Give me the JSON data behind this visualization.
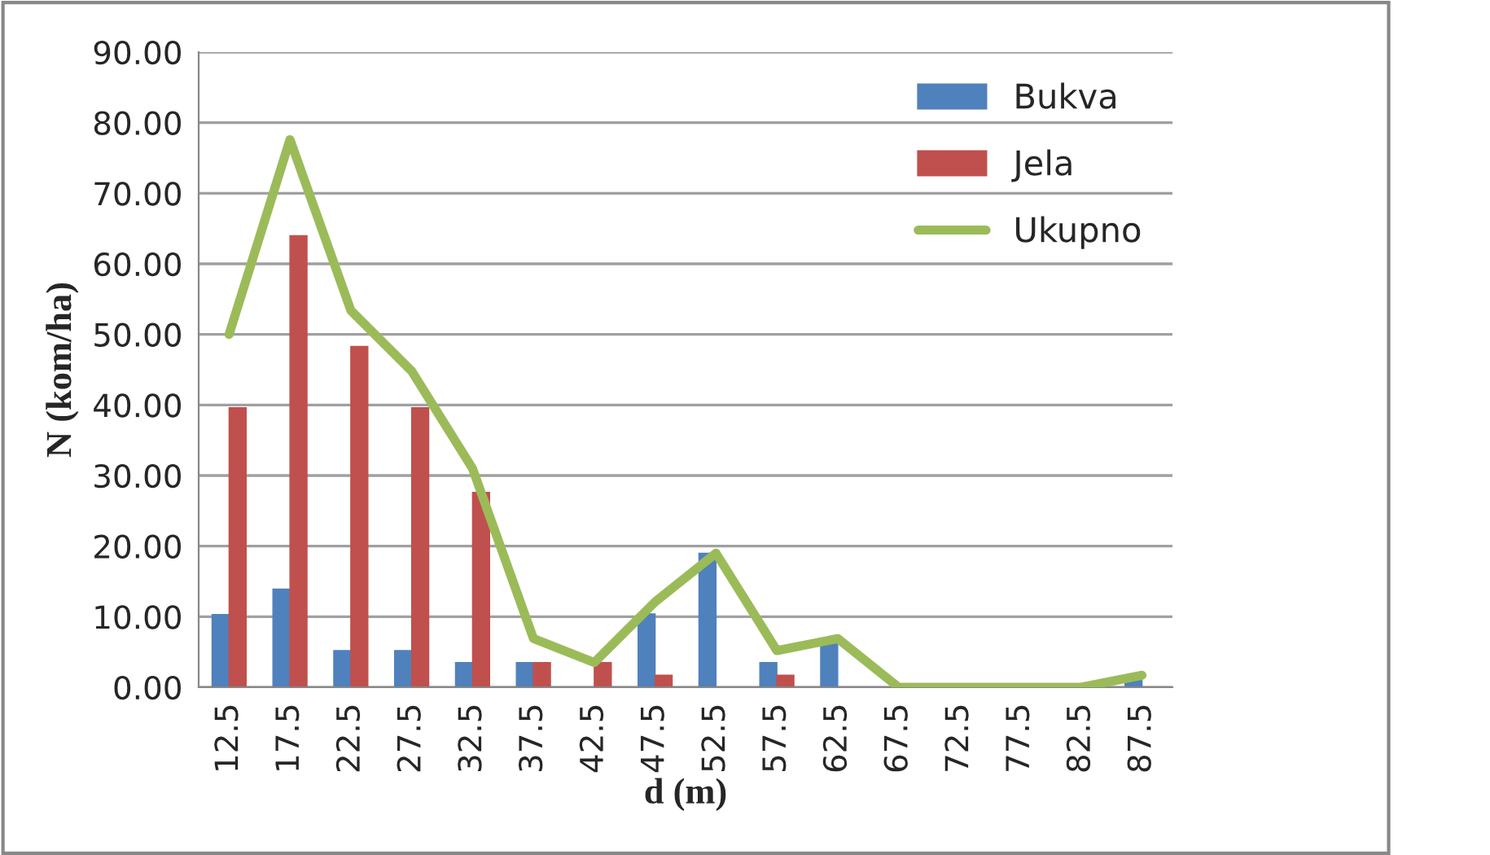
{
  "chart_data": {
    "type": "bar",
    "xlabel": "d (m)",
    "ylabel": "N (kom/ha)",
    "categories": [
      "12.5",
      "17.5",
      "22.5",
      "27.5",
      "32.5",
      "37.5",
      "42.5",
      "47.5",
      "52.5",
      "57.5",
      "62.5",
      "67.5",
      "72.5",
      "77.5",
      "82.5",
      "87.5"
    ],
    "series": [
      {
        "name": "Bukva",
        "color": "#4f81bd",
        "values": [
          10.3,
          13.9,
          5.2,
          5.2,
          3.5,
          3.5,
          0,
          10.4,
          19.0,
          3.5,
          6.9,
          0,
          0,
          0,
          0,
          1.0
        ]
      },
      {
        "name": "Jela",
        "color": "#c0504d",
        "values": [
          39.6,
          64.0,
          48.3,
          39.6,
          27.6,
          3.5,
          3.5,
          1.7,
          0,
          1.7,
          0,
          0,
          0,
          0,
          0,
          0
        ]
      },
      {
        "name": "Ukupno",
        "type": "line",
        "color": "#9bbb59",
        "values": [
          50.0,
          77.6,
          53.4,
          44.8,
          31.0,
          6.9,
          3.5,
          12.1,
          19.0,
          5.2,
          6.9,
          0,
          0,
          0,
          0,
          1.7
        ]
      }
    ],
    "ylim": [
      0,
      90
    ],
    "yticks": [
      {
        "value": 0,
        "label": "0.00"
      },
      {
        "value": 10,
        "label": "10.00"
      },
      {
        "value": 20,
        "label": "20.00"
      },
      {
        "value": 30,
        "label": "30.00"
      },
      {
        "value": 40,
        "label": "40.00"
      },
      {
        "value": 50,
        "label": "50.00"
      },
      {
        "value": 60,
        "label": "60.00"
      },
      {
        "value": 70,
        "label": "70.00"
      },
      {
        "value": 80,
        "label": "80.00"
      },
      {
        "value": 90,
        "label": "90.00"
      }
    ],
    "grid": "y",
    "legend": "top right",
    "marker": "none",
    "line_style": "solid"
  }
}
